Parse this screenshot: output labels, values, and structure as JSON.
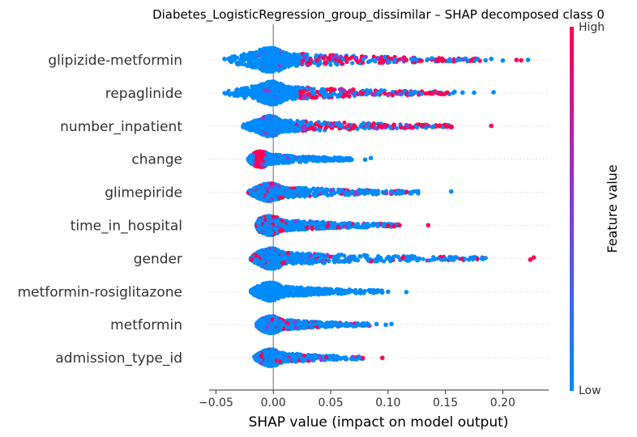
{
  "chart_data": {
    "type": "scatter",
    "subtype": "shap-beeswarm",
    "title": "Diabetes_LogisticRegression_group_dissimilar – SHAP decomposed class 0",
    "xlabel": "SHAP value (impact on model output)",
    "ylabel": "",
    "xlim": [
      -0.056,
      0.24
    ],
    "xticks": [
      -0.05,
      0.0,
      0.05,
      0.1,
      0.15,
      0.2
    ],
    "xtick_labels": [
      "−0.05",
      "0.00",
      "0.05",
      "0.10",
      "0.15",
      "0.20"
    ],
    "colorbar": {
      "title": "Feature value",
      "high_label": "High",
      "low_label": "Low",
      "high_color": "#ff0052",
      "low_color": "#008bfb"
    },
    "features": [
      {
        "name": "glipizide-metformin",
        "min": -0.045,
        "max": 0.222,
        "core": [
          -0.015,
          0.01
        ],
        "density": 1.0,
        "red_mode": "right",
        "extras": [
          [
            0.212,
            "high"
          ],
          [
            0.216,
            "high"
          ],
          [
            0.222,
            "low"
          ],
          [
            0.2,
            "low"
          ],
          [
            0.19,
            "low"
          ],
          [
            0.185,
            "low"
          ]
        ]
      },
      {
        "name": "repaglinide",
        "min": -0.043,
        "max": 0.192,
        "core": [
          -0.012,
          0.01
        ],
        "density": 0.95,
        "red_mode": "right",
        "extras": [
          [
            0.192,
            "low"
          ],
          [
            0.175,
            "low"
          ],
          [
            0.165,
            "low"
          ],
          [
            0.158,
            "low"
          ]
        ]
      },
      {
        "name": "number_inpatient",
        "min": -0.027,
        "max": 0.19,
        "core": [
          -0.012,
          0.006
        ],
        "density": 0.85,
        "red_mode": "right",
        "extras": [
          [
            0.19,
            "high"
          ],
          [
            0.155,
            "high"
          ],
          [
            0.15,
            "high"
          ],
          [
            0.145,
            "high"
          ],
          [
            0.13,
            "high"
          ]
        ]
      },
      {
        "name": "change",
        "min": -0.022,
        "max": 0.085,
        "core": [
          -0.018,
          -0.004
        ],
        "density": 0.65,
        "red_mode": "left",
        "extras": [
          [
            0.085,
            "low"
          ],
          [
            0.08,
            "low"
          ],
          [
            0.055,
            "low"
          ]
        ]
      },
      {
        "name": "glimepiride",
        "min": -0.022,
        "max": 0.155,
        "core": [
          -0.012,
          0.006
        ],
        "density": 0.75,
        "red_mode": "mixed",
        "extras": [
          [
            0.155,
            "low"
          ],
          [
            0.125,
            "low"
          ],
          [
            0.12,
            "low"
          ],
          [
            0.108,
            "low"
          ]
        ]
      },
      {
        "name": "time_in_hospital",
        "min": -0.015,
        "max": 0.135,
        "core": [
          -0.012,
          0.006
        ],
        "density": 0.8,
        "red_mode": "mixed",
        "extras": [
          [
            0.135,
            "high"
          ],
          [
            0.11,
            "high"
          ],
          [
            0.105,
            "high"
          ],
          [
            0.1,
            "high"
          ]
        ]
      },
      {
        "name": "gender",
        "min": -0.02,
        "max": 0.227,
        "core": [
          -0.012,
          0.008
        ],
        "density": 0.85,
        "red_mode": "mixed",
        "extras": [
          [
            0.227,
            "high"
          ],
          [
            0.224,
            "high"
          ],
          [
            0.113,
            "high"
          ],
          [
            0.09,
            "low"
          ]
        ]
      },
      {
        "name": "metformin-rosiglitazone",
        "min": -0.02,
        "max": 0.116,
        "core": [
          -0.012,
          0.006
        ],
        "density": 0.75,
        "red_mode": "none",
        "extras": [
          [
            0.116,
            "low"
          ],
          [
            0.1,
            "low"
          ],
          [
            0.095,
            "low"
          ],
          [
            0.085,
            "low"
          ]
        ]
      },
      {
        "name": "metformin",
        "min": -0.015,
        "max": 0.103,
        "core": [
          -0.01,
          0.006
        ],
        "density": 0.7,
        "red_mode": "mixed",
        "extras": [
          [
            0.103,
            "low"
          ],
          [
            0.098,
            "low"
          ],
          [
            0.09,
            "low"
          ]
        ]
      },
      {
        "name": "admission_type_id",
        "min": -0.017,
        "max": 0.095,
        "core": [
          -0.01,
          0.005
        ],
        "density": 0.7,
        "red_mode": "mixed",
        "extras": [
          [
            0.095,
            "high"
          ],
          [
            0.078,
            "high"
          ],
          [
            0.075,
            "low"
          ],
          [
            0.068,
            "low"
          ]
        ]
      }
    ]
  }
}
